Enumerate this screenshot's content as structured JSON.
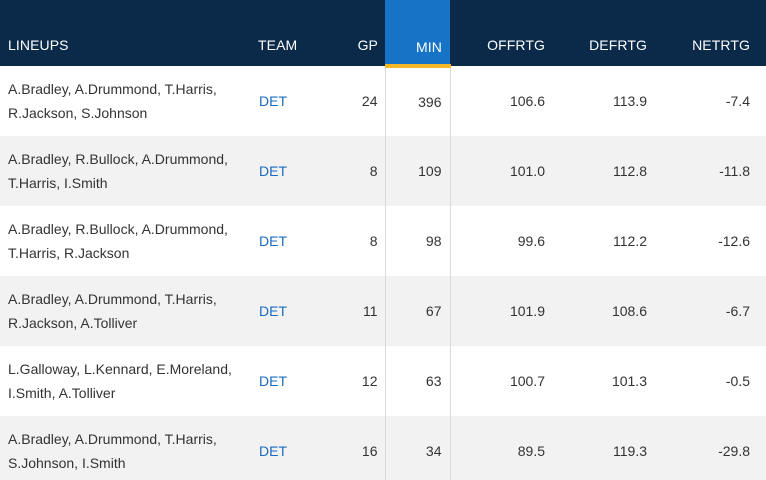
{
  "headers": {
    "lineups": "LINEUPS",
    "team": "TEAM",
    "gp": "GP",
    "min": "MIN",
    "offrtg": "OFFRTG",
    "defrtg": "DEFRTG",
    "netrtg": "NETRTG"
  },
  "colors": {
    "header_bg": "#0b2a4a",
    "sorted_header_bg": "#1673c5",
    "sorted_underline": "#f5b825",
    "team_link": "#1a6bbf",
    "alt_row": "#f2f2f2"
  },
  "rows": [
    {
      "line1": "A.Bradley, A.Drummond, T.Harris,",
      "line2": "R.Jackson, S.Johnson",
      "team": "DET",
      "gp": "24",
      "min": "396",
      "offrtg": "106.6",
      "defrtg": "113.9",
      "netrtg": "-7.4"
    },
    {
      "line1": "A.Bradley, R.Bullock, A.Drummond,",
      "line2": "T.Harris, I.Smith",
      "team": "DET",
      "gp": "8",
      "min": "109",
      "offrtg": "101.0",
      "defrtg": "112.8",
      "netrtg": "-11.8"
    },
    {
      "line1": "A.Bradley, R.Bullock, A.Drummond,",
      "line2": "T.Harris, R.Jackson",
      "team": "DET",
      "gp": "8",
      "min": "98",
      "offrtg": "99.6",
      "defrtg": "112.2",
      "netrtg": "-12.6"
    },
    {
      "line1": "A.Bradley, A.Drummond, T.Harris,",
      "line2": "R.Jackson, A.Tolliver",
      "team": "DET",
      "gp": "11",
      "min": "67",
      "offrtg": "101.9",
      "defrtg": "108.6",
      "netrtg": "-6.7"
    },
    {
      "line1": "L.Galloway, L.Kennard, E.Moreland,",
      "line2": "I.Smith, A.Tolliver",
      "team": "DET",
      "gp": "12",
      "min": "63",
      "offrtg": "100.7",
      "defrtg": "101.3",
      "netrtg": "-0.5"
    },
    {
      "line1": "A.Bradley, A.Drummond, T.Harris,",
      "line2": "S.Johnson, I.Smith",
      "team": "DET",
      "gp": "16",
      "min": "34",
      "offrtg": "89.5",
      "defrtg": "119.3",
      "netrtg": "-29.8"
    }
  ]
}
